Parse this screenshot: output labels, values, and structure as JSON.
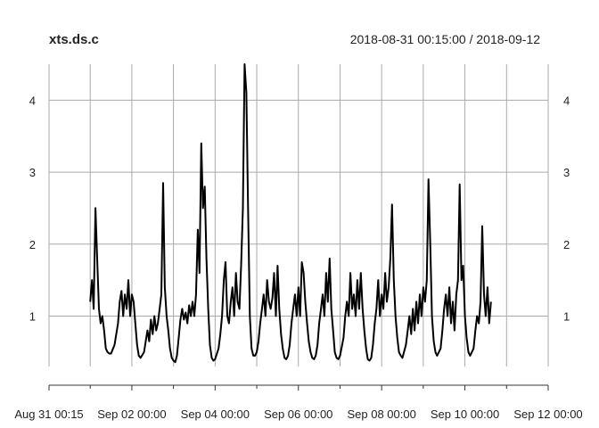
{
  "chart_data": {
    "type": "line",
    "title": "xts.ds.c",
    "subtitle": "2018-08-31 00:15:00 / 2018-09-12",
    "grid": true,
    "line_color": "#000000",
    "grid_color": "#aaaaaa",
    "x_range": [
      "2018-08-31 00:15",
      "2018-09-12 00:00"
    ],
    "ylim": [
      0.3,
      4.5
    ],
    "x_ticks": [
      {
        "value": "2018-08-31 00:15",
        "label": "Aug 31 00:15"
      },
      {
        "value": "2018-09-02 00:00",
        "label": "Sep 02 00:00"
      },
      {
        "value": "2018-09-04 00:00",
        "label": "Sep 04 00:00"
      },
      {
        "value": "2018-09-06 00:00",
        "label": "Sep 06 00:00"
      },
      {
        "value": "2018-09-08 00:00",
        "label": "Sep 08 00:00"
      },
      {
        "value": "2018-09-10 00:00",
        "label": "Sep 10 00:00"
      },
      {
        "value": "2018-09-12 00:00",
        "label": "Sep 12 00:00"
      }
    ],
    "x_minor_ticks": [
      "2018-09-01 00:00",
      "2018-09-03 00:00",
      "2018-09-05 00:00",
      "2018-09-07 00:00",
      "2018-09-09 00:00",
      "2018-09-11 00:00"
    ],
    "y_ticks": [
      {
        "value": 1,
        "label": "1"
      },
      {
        "value": 2,
        "label": "2"
      },
      {
        "value": 3,
        "label": "3"
      },
      {
        "value": 4,
        "label": "4"
      }
    ],
    "series": [
      {
        "points": [
          [
            "2018-09-01 00:00",
            1.2
          ],
          [
            "2018-09-01 01:00",
            1.5
          ],
          [
            "2018-09-01 02:00",
            1.1
          ],
          [
            "2018-09-01 03:00",
            2.5
          ],
          [
            "2018-09-01 04:00",
            1.8
          ],
          [
            "2018-09-01 05:00",
            1.1
          ],
          [
            "2018-09-01 06:00",
            0.9
          ],
          [
            "2018-09-01 07:00",
            1.0
          ],
          [
            "2018-09-01 08:00",
            0.8
          ],
          [
            "2018-09-01 09:00",
            0.55
          ],
          [
            "2018-09-01 10:00",
            0.5
          ],
          [
            "2018-09-01 11:00",
            0.48
          ],
          [
            "2018-09-01 12:00",
            0.48
          ],
          [
            "2018-09-01 14:00",
            0.6
          ],
          [
            "2018-09-01 16:00",
            0.9
          ],
          [
            "2018-09-01 17:00",
            1.2
          ],
          [
            "2018-09-01 18:00",
            1.35
          ],
          [
            "2018-09-01 19:00",
            1.0
          ],
          [
            "2018-09-01 20:00",
            1.3
          ],
          [
            "2018-09-01 21:00",
            1.1
          ],
          [
            "2018-09-01 22:00",
            1.5
          ],
          [
            "2018-09-01 23:00",
            1.0
          ],
          [
            "2018-09-02 00:00",
            1.3
          ],
          [
            "2018-09-02 01:00",
            1.2
          ],
          [
            "2018-09-02 02:00",
            0.9
          ],
          [
            "2018-09-02 03:00",
            0.6
          ],
          [
            "2018-09-02 04:00",
            0.45
          ],
          [
            "2018-09-02 05:00",
            0.42
          ],
          [
            "2018-09-02 07:00",
            0.5
          ],
          [
            "2018-09-02 09:00",
            0.8
          ],
          [
            "2018-09-02 10:00",
            0.65
          ],
          [
            "2018-09-02 11:00",
            0.95
          ],
          [
            "2018-09-02 12:00",
            0.75
          ],
          [
            "2018-09-02 13:00",
            1.0
          ],
          [
            "2018-09-02 14:00",
            0.8
          ],
          [
            "2018-09-02 15:00",
            0.9
          ],
          [
            "2018-09-02 16:00",
            1.1
          ],
          [
            "2018-09-02 17:00",
            1.3
          ],
          [
            "2018-09-02 18:00",
            2.85
          ],
          [
            "2018-09-02 19:00",
            1.4
          ],
          [
            "2018-09-02 20:00",
            1.0
          ],
          [
            "2018-09-02 21:00",
            0.8
          ],
          [
            "2018-09-02 22:00",
            0.55
          ],
          [
            "2018-09-02 23:00",
            0.42
          ],
          [
            "2018-09-03 00:00",
            0.38
          ],
          [
            "2018-09-03 01:00",
            0.36
          ],
          [
            "2018-09-03 02:00",
            0.45
          ],
          [
            "2018-09-03 03:00",
            0.7
          ],
          [
            "2018-09-03 04:00",
            0.95
          ],
          [
            "2018-09-03 05:00",
            1.1
          ],
          [
            "2018-09-03 06:00",
            0.95
          ],
          [
            "2018-09-03 07:00",
            1.05
          ],
          [
            "2018-09-03 08:00",
            0.9
          ],
          [
            "2018-09-03 09:00",
            1.15
          ],
          [
            "2018-09-03 10:00",
            1.0
          ],
          [
            "2018-09-03 11:00",
            1.2
          ],
          [
            "2018-09-03 12:00",
            1.0
          ],
          [
            "2018-09-03 13:00",
            1.3
          ],
          [
            "2018-09-03 14:00",
            2.2
          ],
          [
            "2018-09-03 15:00",
            1.6
          ],
          [
            "2018-09-03 16:00",
            3.4
          ],
          [
            "2018-09-03 17:00",
            2.5
          ],
          [
            "2018-09-03 18:00",
            2.8
          ],
          [
            "2018-09-03 19:00",
            1.8
          ],
          [
            "2018-09-03 20:00",
            1.1
          ],
          [
            "2018-09-03 21:00",
            0.6
          ],
          [
            "2018-09-03 22:00",
            0.42
          ],
          [
            "2018-09-03 23:00",
            0.38
          ],
          [
            "2018-09-04 00:00",
            0.4
          ],
          [
            "2018-09-04 02:00",
            0.55
          ],
          [
            "2018-09-04 03:00",
            0.75
          ],
          [
            "2018-09-04 04:00",
            1.0
          ],
          [
            "2018-09-04 05:00",
            1.5
          ],
          [
            "2018-09-04 06:00",
            1.75
          ],
          [
            "2018-09-04 07:00",
            1.0
          ],
          [
            "2018-09-04 08:00",
            0.9
          ],
          [
            "2018-09-04 09:00",
            1.2
          ],
          [
            "2018-09-04 10:00",
            1.4
          ],
          [
            "2018-09-04 11:00",
            1.0
          ],
          [
            "2018-09-04 12:00",
            1.6
          ],
          [
            "2018-09-04 13:00",
            1.2
          ],
          [
            "2018-09-04 14:00",
            1.1
          ],
          [
            "2018-09-04 15:00",
            1.7
          ],
          [
            "2018-09-04 16:00",
            2.5
          ],
          [
            "2018-09-04 17:00",
            4.5
          ],
          [
            "2018-09-04 18:00",
            4.1
          ],
          [
            "2018-09-04 19:00",
            2.5
          ],
          [
            "2018-09-04 20:00",
            1.0
          ],
          [
            "2018-09-04 21:00",
            0.55
          ],
          [
            "2018-09-04 22:00",
            0.45
          ],
          [
            "2018-09-04 23:00",
            0.45
          ],
          [
            "2018-09-05 00:00",
            0.5
          ],
          [
            "2018-09-05 01:00",
            0.65
          ],
          [
            "2018-09-05 02:00",
            0.9
          ],
          [
            "2018-09-05 03:00",
            1.1
          ],
          [
            "2018-09-05 04:00",
            1.3
          ],
          [
            "2018-09-05 05:00",
            1.0
          ],
          [
            "2018-09-05 06:00",
            1.5
          ],
          [
            "2018-09-05 07:00",
            1.2
          ],
          [
            "2018-09-05 08:00",
            1.1
          ],
          [
            "2018-09-05 09:00",
            1.25
          ],
          [
            "2018-09-05 10:00",
            1.6
          ],
          [
            "2018-09-05 11:00",
            1.0
          ],
          [
            "2018-09-05 12:00",
            1.7
          ],
          [
            "2018-09-05 13:00",
            1.1
          ],
          [
            "2018-09-05 14:00",
            0.75
          ],
          [
            "2018-09-05 15:00",
            0.55
          ],
          [
            "2018-09-05 16:00",
            0.42
          ],
          [
            "2018-09-05 17:00",
            0.4
          ],
          [
            "2018-09-05 18:00",
            0.45
          ],
          [
            "2018-09-05 19:00",
            0.6
          ],
          [
            "2018-09-05 20:00",
            0.9
          ],
          [
            "2018-09-05 21:00",
            1.1
          ],
          [
            "2018-09-05 22:00",
            1.3
          ],
          [
            "2018-09-05 23:00",
            1.0
          ],
          [
            "2018-09-06 00:00",
            1.4
          ],
          [
            "2018-09-06 01:00",
            1.0
          ],
          [
            "2018-09-06 02:00",
            1.75
          ],
          [
            "2018-09-06 03:00",
            1.6
          ],
          [
            "2018-09-06 04:00",
            1.2
          ],
          [
            "2018-09-06 05:00",
            0.9
          ],
          [
            "2018-09-06 06:00",
            0.65
          ],
          [
            "2018-09-06 07:00",
            0.5
          ],
          [
            "2018-09-06 08:00",
            0.42
          ],
          [
            "2018-09-06 09:00",
            0.4
          ],
          [
            "2018-09-06 10:00",
            0.45
          ],
          [
            "2018-09-06 11:00",
            0.6
          ],
          [
            "2018-09-06 12:00",
            0.9
          ],
          [
            "2018-09-06 13:00",
            1.1
          ],
          [
            "2018-09-06 14:00",
            1.3
          ],
          [
            "2018-09-06 15:00",
            1.0
          ],
          [
            "2018-09-06 16:00",
            1.6
          ],
          [
            "2018-09-06 17:00",
            1.2
          ],
          [
            "2018-09-06 18:00",
            1.8
          ],
          [
            "2018-09-06 19:00",
            1.1
          ],
          [
            "2018-09-06 20:00",
            0.8
          ],
          [
            "2018-09-06 21:00",
            0.5
          ],
          [
            "2018-09-06 22:00",
            0.42
          ],
          [
            "2018-09-06 23:00",
            0.4
          ],
          [
            "2018-09-07 00:00",
            0.45
          ],
          [
            "2018-09-07 02:00",
            0.7
          ],
          [
            "2018-09-07 03:00",
            1.0
          ],
          [
            "2018-09-07 04:00",
            1.2
          ],
          [
            "2018-09-07 05:00",
            1.0
          ],
          [
            "2018-09-07 06:00",
            1.6
          ],
          [
            "2018-09-07 07:00",
            1.1
          ],
          [
            "2018-09-07 08:00",
            1.3
          ],
          [
            "2018-09-07 09:00",
            1.0
          ],
          [
            "2018-09-07 10:00",
            1.5
          ],
          [
            "2018-09-07 11:00",
            1.1
          ],
          [
            "2018-09-07 12:00",
            1.6
          ],
          [
            "2018-09-07 13:00",
            1.1
          ],
          [
            "2018-09-07 14:00",
            0.8
          ],
          [
            "2018-09-07 15:00",
            0.55
          ],
          [
            "2018-09-07 16:00",
            0.4
          ],
          [
            "2018-09-07 17:00",
            0.38
          ],
          [
            "2018-09-07 18:00",
            0.42
          ],
          [
            "2018-09-07 19:00",
            0.6
          ],
          [
            "2018-09-07 20:00",
            0.9
          ],
          [
            "2018-09-07 21:00",
            1.1
          ],
          [
            "2018-09-07 22:00",
            1.5
          ],
          [
            "2018-09-07 23:00",
            1.0
          ],
          [
            "2018-09-08 00:00",
            1.3
          ],
          [
            "2018-09-08 01:00",
            1.1
          ],
          [
            "2018-09-08 02:00",
            1.6
          ],
          [
            "2018-09-08 03:00",
            1.2
          ],
          [
            "2018-09-08 04:00",
            1.4
          ],
          [
            "2018-09-08 05:00",
            1.8
          ],
          [
            "2018-09-08 06:00",
            2.55
          ],
          [
            "2018-09-08 07:00",
            1.5
          ],
          [
            "2018-09-08 08:00",
            1.0
          ],
          [
            "2018-09-08 09:00",
            0.7
          ],
          [
            "2018-09-08 10:00",
            0.5
          ],
          [
            "2018-09-08 11:00",
            0.45
          ],
          [
            "2018-09-08 12:00",
            0.42
          ],
          [
            "2018-09-08 14:00",
            0.6
          ],
          [
            "2018-09-08 15:00",
            0.8
          ],
          [
            "2018-09-08 16:00",
            1.0
          ],
          [
            "2018-09-08 17:00",
            0.75
          ],
          [
            "2018-09-08 18:00",
            1.1
          ],
          [
            "2018-09-08 19:00",
            0.8
          ],
          [
            "2018-09-08 20:00",
            1.2
          ],
          [
            "2018-09-08 21:00",
            0.9
          ],
          [
            "2018-09-08 22:00",
            1.3
          ],
          [
            "2018-09-08 23:00",
            1.0
          ],
          [
            "2018-09-09 00:00",
            1.4
          ],
          [
            "2018-09-09 01:00",
            1.2
          ],
          [
            "2018-09-09 02:00",
            1.5
          ],
          [
            "2018-09-09 03:00",
            2.9
          ],
          [
            "2018-09-09 04:00",
            2.0
          ],
          [
            "2018-09-09 05:00",
            1.0
          ],
          [
            "2018-09-09 06:00",
            0.65
          ],
          [
            "2018-09-09 07:00",
            0.5
          ],
          [
            "2018-09-09 08:00",
            0.45
          ],
          [
            "2018-09-09 10:00",
            0.55
          ],
          [
            "2018-09-09 11:00",
            0.8
          ],
          [
            "2018-09-09 12:00",
            1.1
          ],
          [
            "2018-09-09 13:00",
            1.3
          ],
          [
            "2018-09-09 14:00",
            1.0
          ],
          [
            "2018-09-09 15:00",
            1.4
          ],
          [
            "2018-09-09 16:00",
            0.9
          ],
          [
            "2018-09-09 17:00",
            1.2
          ],
          [
            "2018-09-09 18:00",
            0.8
          ],
          [
            "2018-09-09 19:00",
            1.3
          ],
          [
            "2018-09-09 20:00",
            1.5
          ],
          [
            "2018-09-09 21:00",
            2.83
          ],
          [
            "2018-09-09 22:00",
            1.5
          ],
          [
            "2018-09-09 23:00",
            1.7
          ],
          [
            "2018-09-10 00:00",
            1.0
          ],
          [
            "2018-09-10 01:00",
            0.7
          ],
          [
            "2018-09-10 02:00",
            0.5
          ],
          [
            "2018-09-10 03:00",
            0.45
          ],
          [
            "2018-09-10 05:00",
            0.55
          ],
          [
            "2018-09-10 06:00",
            0.8
          ],
          [
            "2018-09-10 07:00",
            1.0
          ],
          [
            "2018-09-10 08:00",
            0.9
          ],
          [
            "2018-09-10 09:00",
            1.2
          ],
          [
            "2018-09-10 10:00",
            2.25
          ],
          [
            "2018-09-10 11:00",
            1.3
          ],
          [
            "2018-09-10 12:00",
            1.0
          ],
          [
            "2018-09-10 13:00",
            1.4
          ],
          [
            "2018-09-10 14:00",
            0.9
          ],
          [
            "2018-09-10 15:00",
            1.2
          ]
        ]
      }
    ]
  }
}
